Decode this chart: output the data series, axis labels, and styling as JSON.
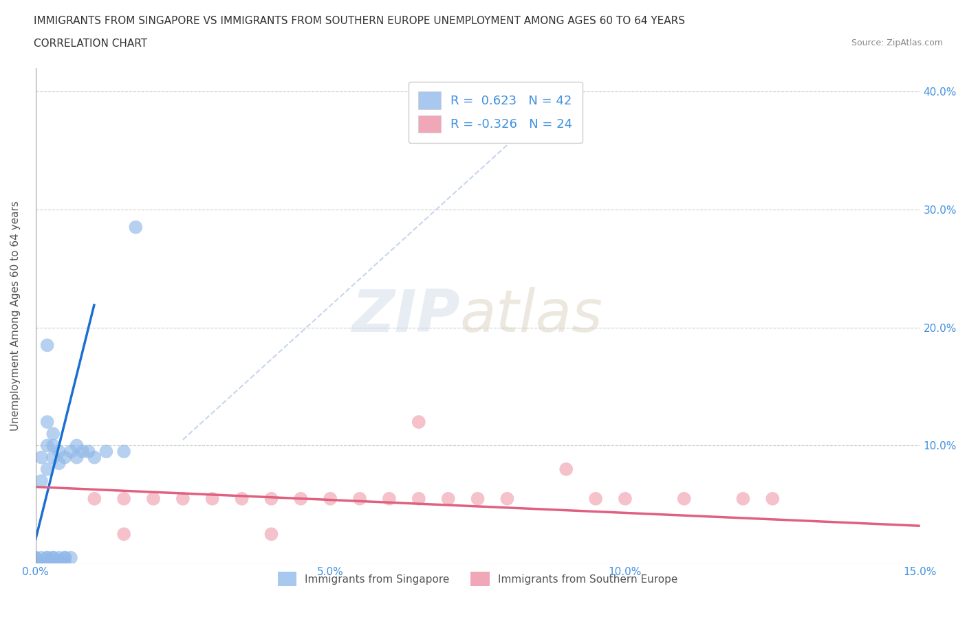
{
  "title_line1": "IMMIGRANTS FROM SINGAPORE VS IMMIGRANTS FROM SOUTHERN EUROPE UNEMPLOYMENT AMONG AGES 60 TO 64 YEARS",
  "title_line2": "CORRELATION CHART",
  "source": "Source: ZipAtlas.com",
  "ylabel": "Unemployment Among Ages 60 to 64 years",
  "xlim": [
    0.0,
    0.15
  ],
  "ylim": [
    0.0,
    0.42
  ],
  "xticks": [
    0.0,
    0.05,
    0.1,
    0.15
  ],
  "xtick_labels": [
    "0.0%",
    "5.0%",
    "10.0%",
    "15.0%"
  ],
  "yticks": [
    0.0,
    0.1,
    0.2,
    0.3,
    0.4
  ],
  "right_ytick_labels": [
    "",
    "10.0%",
    "20.0%",
    "30.0%",
    "40.0%"
  ],
  "legend_entries": [
    {
      "label": "Immigrants from Singapore",
      "color": "#a8c8f0",
      "R": 0.623,
      "N": 42
    },
    {
      "label": "Immigrants from Southern Europe",
      "color": "#f0a8b8",
      "R": -0.326,
      "N": 24
    }
  ],
  "singapore_scatter": [
    [
      0.0,
      0.0
    ],
    [
      0.0,
      0.0
    ],
    [
      0.0,
      0.0
    ],
    [
      0.0,
      0.0
    ],
    [
      0.0,
      0.0
    ],
    [
      0.0,
      0.005
    ],
    [
      0.0,
      0.005
    ],
    [
      0.001,
      0.0
    ],
    [
      0.001,
      0.005
    ],
    [
      0.002,
      0.0
    ],
    [
      0.002,
      0.005
    ],
    [
      0.002,
      0.005
    ],
    [
      0.003,
      0.0
    ],
    [
      0.003,
      0.005
    ],
    [
      0.003,
      0.005
    ],
    [
      0.004,
      0.0
    ],
    [
      0.004,
      0.005
    ],
    [
      0.005,
      0.0
    ],
    [
      0.005,
      0.005
    ],
    [
      0.006,
      0.005
    ],
    [
      0.001,
      0.07
    ],
    [
      0.001,
      0.09
    ],
    [
      0.002,
      0.08
    ],
    [
      0.002,
      0.1
    ],
    [
      0.002,
      0.12
    ],
    [
      0.003,
      0.09
    ],
    [
      0.003,
      0.1
    ],
    [
      0.003,
      0.11
    ],
    [
      0.004,
      0.085
    ],
    [
      0.004,
      0.095
    ],
    [
      0.005,
      0.09
    ],
    [
      0.006,
      0.095
    ],
    [
      0.007,
      0.09
    ],
    [
      0.007,
      0.1
    ],
    [
      0.008,
      0.095
    ],
    [
      0.009,
      0.095
    ],
    [
      0.01,
      0.09
    ],
    [
      0.012,
      0.095
    ],
    [
      0.015,
      0.095
    ],
    [
      0.017,
      0.285
    ],
    [
      0.002,
      0.185
    ],
    [
      0.005,
      0.005
    ]
  ],
  "southern_europe_scatter": [
    [
      0.01,
      0.055
    ],
    [
      0.015,
      0.055
    ],
    [
      0.02,
      0.055
    ],
    [
      0.025,
      0.055
    ],
    [
      0.03,
      0.055
    ],
    [
      0.035,
      0.055
    ],
    [
      0.04,
      0.055
    ],
    [
      0.045,
      0.055
    ],
    [
      0.05,
      0.055
    ],
    [
      0.055,
      0.055
    ],
    [
      0.06,
      0.055
    ],
    [
      0.065,
      0.055
    ],
    [
      0.07,
      0.055
    ],
    [
      0.075,
      0.055
    ],
    [
      0.08,
      0.055
    ],
    [
      0.09,
      0.08
    ],
    [
      0.095,
      0.055
    ],
    [
      0.1,
      0.055
    ],
    [
      0.11,
      0.055
    ],
    [
      0.12,
      0.055
    ],
    [
      0.125,
      0.055
    ],
    [
      0.015,
      0.025
    ],
    [
      0.04,
      0.025
    ],
    [
      0.065,
      0.12
    ]
  ],
  "singapore_line_x": [
    0.0,
    0.01
  ],
  "singapore_line_y": [
    0.02,
    0.22
  ],
  "southern_europe_line_x": [
    0.0,
    0.15
  ],
  "southern_europe_line_y": [
    0.065,
    0.032
  ],
  "diagonal_line_x": [
    0.025,
    0.09
  ],
  "diagonal_line_y": [
    0.105,
    0.4
  ],
  "bg_color": "#ffffff",
  "grid_color": "#cccccc",
  "singapore_dot_color": "#90b8e8",
  "southern_dot_color": "#f0a0b0",
  "singapore_line_color": "#1a6fd4",
  "southern_europe_line_color": "#e06080",
  "diagonal_line_color": "#b8cce8",
  "axis_label_color": "#555555",
  "title_color": "#333333",
  "right_ytick_color": "#4090e0",
  "xtick_color": "#4090e0"
}
